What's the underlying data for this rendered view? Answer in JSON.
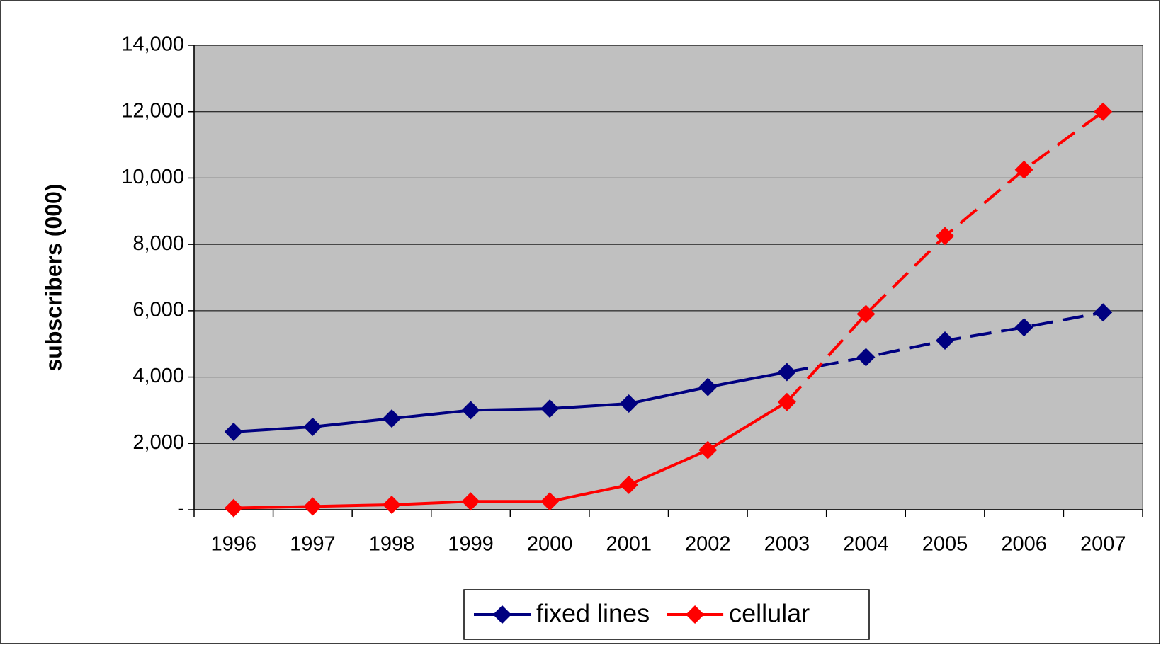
{
  "chart_data": {
    "type": "line",
    "y_label": "subscribers (000)",
    "categories": [
      "1996",
      "1997",
      "1998",
      "1999",
      "2000",
      "2001",
      "2002",
      "2003",
      "2004",
      "2005",
      "2006",
      "2007"
    ],
    "series": [
      {
        "name": "fixed lines",
        "color": "#000080",
        "dashed_from": "2003",
        "values": [
          2350,
          2500,
          2750,
          3000,
          3050,
          3200,
          3700,
          4150,
          4600,
          5100,
          5500,
          5950
        ]
      },
      {
        "name": "cellular",
        "color": "#ff0000",
        "dashed_from": "2003",
        "values": [
          50,
          100,
          150,
          250,
          250,
          750,
          1800,
          3250,
          5900,
          8250,
          10250,
          12000
        ]
      }
    ],
    "ylim": [
      0,
      14000
    ],
    "yticks": [
      {
        "value": 0,
        "label": "-"
      },
      {
        "value": 2000,
        "label": "2,000"
      },
      {
        "value": 4000,
        "label": "4,000"
      },
      {
        "value": 6000,
        "label": "6,000"
      },
      {
        "value": 8000,
        "label": "8,000"
      },
      {
        "value": 10000,
        "label": "10,000"
      },
      {
        "value": 12000,
        "label": "12,000"
      },
      {
        "value": 14000,
        "label": "14,000"
      }
    ],
    "grid": true,
    "legend": "bottom",
    "plot_background": "#c0c0c0"
  }
}
